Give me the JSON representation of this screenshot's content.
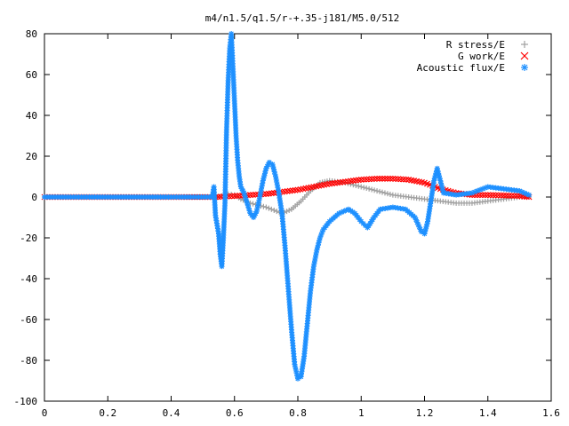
{
  "chart_data": {
    "type": "scatter",
    "title": "m4/n1.5/q1.5/r-+.35-j181/M5.0/512",
    "xlabel": "",
    "ylabel": "",
    "xlim": [
      0,
      1.6
    ],
    "ylim": [
      -100,
      80
    ],
    "x_ticks": [
      "0",
      "0.2",
      "0.4",
      "0.6",
      "0.8",
      "1",
      "1.2",
      "1.4",
      "1.6"
    ],
    "y_ticks": [
      "80",
      "60",
      "40",
      "20",
      "0",
      "-20",
      "-40",
      "-60",
      "-80",
      "-100"
    ],
    "grid": false,
    "legend_position": "top-right",
    "series": [
      {
        "name": "R stress/E",
        "marker": "+",
        "color": "#a0a0a0",
        "points": [
          [
            0.0,
            0
          ],
          [
            0.2,
            0
          ],
          [
            0.4,
            0
          ],
          [
            0.54,
            0
          ],
          [
            0.56,
            0.5
          ],
          [
            0.58,
            1.5
          ],
          [
            0.6,
            1
          ],
          [
            0.62,
            -1
          ],
          [
            0.65,
            -3
          ],
          [
            0.7,
            -5
          ],
          [
            0.75,
            -8
          ],
          [
            0.78,
            -6
          ],
          [
            0.81,
            -2
          ],
          [
            0.84,
            3
          ],
          [
            0.87,
            7
          ],
          [
            0.9,
            8
          ],
          [
            0.95,
            7
          ],
          [
            1.0,
            5
          ],
          [
            1.05,
            3
          ],
          [
            1.1,
            1
          ],
          [
            1.15,
            0
          ],
          [
            1.2,
            -1
          ],
          [
            1.25,
            -2
          ],
          [
            1.3,
            -3
          ],
          [
            1.35,
            -3
          ],
          [
            1.4,
            -2
          ],
          [
            1.45,
            -1
          ],
          [
            1.5,
            0
          ],
          [
            1.53,
            0
          ]
        ]
      },
      {
        "name": "G work/E",
        "marker": "x",
        "color": "#ff0000",
        "points": [
          [
            0.0,
            0
          ],
          [
            0.2,
            0
          ],
          [
            0.4,
            0
          ],
          [
            0.54,
            0
          ],
          [
            0.6,
            0.5
          ],
          [
            0.65,
            1
          ],
          [
            0.7,
            1.5
          ],
          [
            0.75,
            2.5
          ],
          [
            0.8,
            3.5
          ],
          [
            0.85,
            5
          ],
          [
            0.9,
            6.5
          ],
          [
            0.95,
            7.5
          ],
          [
            1.0,
            8.5
          ],
          [
            1.05,
            9
          ],
          [
            1.1,
            9
          ],
          [
            1.15,
            8.5
          ],
          [
            1.2,
            7
          ],
          [
            1.25,
            4
          ],
          [
            1.3,
            2
          ],
          [
            1.35,
            1
          ],
          [
            1.4,
            1
          ],
          [
            1.45,
            0.8
          ],
          [
            1.5,
            0.5
          ],
          [
            1.53,
            0
          ]
        ]
      },
      {
        "name": "Acoustic flux/E",
        "marker": "*",
        "color": "#1e90ff",
        "points": [
          [
            0.0,
            0
          ],
          [
            0.2,
            0
          ],
          [
            0.4,
            0
          ],
          [
            0.53,
            0
          ],
          [
            0.535,
            5
          ],
          [
            0.54,
            -9
          ],
          [
            0.55,
            -18
          ],
          [
            0.555,
            -28
          ],
          [
            0.56,
            -34
          ],
          [
            0.565,
            -20
          ],
          [
            0.57,
            -3
          ],
          [
            0.575,
            33
          ],
          [
            0.58,
            57
          ],
          [
            0.585,
            73
          ],
          [
            0.59,
            80
          ],
          [
            0.595,
            64
          ],
          [
            0.6,
            47
          ],
          [
            0.605,
            30
          ],
          [
            0.61,
            18
          ],
          [
            0.615,
            10
          ],
          [
            0.62,
            5
          ],
          [
            0.63,
            2
          ],
          [
            0.64,
            -3
          ],
          [
            0.65,
            -8
          ],
          [
            0.66,
            -10
          ],
          [
            0.67,
            -7
          ],
          [
            0.68,
            0
          ],
          [
            0.69,
            8
          ],
          [
            0.7,
            14
          ],
          [
            0.71,
            17
          ],
          [
            0.72,
            16
          ],
          [
            0.73,
            10
          ],
          [
            0.74,
            2
          ],
          [
            0.75,
            -8
          ],
          [
            0.76,
            -25
          ],
          [
            0.77,
            -45
          ],
          [
            0.78,
            -65
          ],
          [
            0.79,
            -82
          ],
          [
            0.8,
            -89
          ],
          [
            0.81,
            -88
          ],
          [
            0.82,
            -78
          ],
          [
            0.83,
            -62
          ],
          [
            0.84,
            -46
          ],
          [
            0.85,
            -34
          ],
          [
            0.86,
            -26
          ],
          [
            0.87,
            -20
          ],
          [
            0.88,
            -16
          ],
          [
            0.9,
            -12
          ],
          [
            0.93,
            -8
          ],
          [
            0.96,
            -6
          ],
          [
            0.98,
            -8
          ],
          [
            1.0,
            -12
          ],
          [
            1.02,
            -15
          ],
          [
            1.04,
            -10
          ],
          [
            1.06,
            -6
          ],
          [
            1.1,
            -5
          ],
          [
            1.14,
            -6
          ],
          [
            1.17,
            -10
          ],
          [
            1.19,
            -17
          ],
          [
            1.2,
            -18
          ],
          [
            1.21,
            -12
          ],
          [
            1.22,
            -2
          ],
          [
            1.23,
            8
          ],
          [
            1.24,
            14
          ],
          [
            1.25,
            8
          ],
          [
            1.26,
            2
          ],
          [
            1.3,
            1
          ],
          [
            1.35,
            2
          ],
          [
            1.4,
            5
          ],
          [
            1.45,
            4
          ],
          [
            1.5,
            3
          ],
          [
            1.53,
            1
          ]
        ]
      }
    ]
  }
}
